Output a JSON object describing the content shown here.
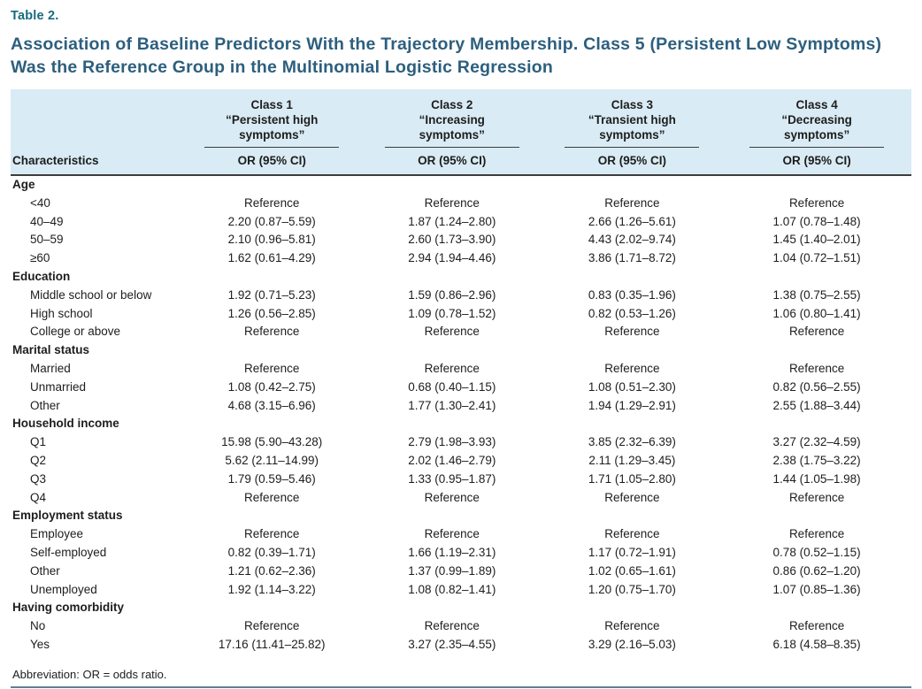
{
  "colors": {
    "accent_teal": "#176a80",
    "heading_blue": "#2d5f7e",
    "header_bg": "#d9ebf4",
    "header_rule": "#3d3d3d",
    "footer_rule": "#607f92"
  },
  "header": {
    "table_label": "Table 2.",
    "title": "Association of Baseline Predictors With the Trajectory Membership. Class 5 (Persistent Low Symptoms) Was the Reference Group in the Multinomial Logistic Regression"
  },
  "table": {
    "row_header": "Characteristics",
    "columns": [
      {
        "class_label": "Class 1",
        "class_name": "“Persistent high symptoms”",
        "measure": "OR (95% CI)"
      },
      {
        "class_label": "Class 2",
        "class_name": "“Increasing symptoms”",
        "measure": "OR (95% CI)"
      },
      {
        "class_label": "Class 3",
        "class_name": "“Transient high symptoms”",
        "measure": "OR (95% CI)"
      },
      {
        "class_label": "Class 4",
        "class_name": "“Decreasing symptoms”",
        "measure": "OR (95% CI)"
      }
    ],
    "sections": [
      {
        "label": "Age",
        "rows": [
          {
            "label": "<40",
            "values": [
              "Reference",
              "Reference",
              "Reference",
              "Reference"
            ]
          },
          {
            "label": "40–49",
            "values": [
              "2.20 (0.87–5.59)",
              "1.87 (1.24–2.80)",
              "2.66 (1.26–5.61)",
              "1.07 (0.78–1.48)"
            ]
          },
          {
            "label": "50–59",
            "values": [
              "2.10 (0.96–5.81)",
              "2.60 (1.73–3.90)",
              "4.43 (2.02–9.74)",
              "1.45 (1.40–2.01)"
            ]
          },
          {
            "label": "≥60",
            "values": [
              "1.62 (0.61–4.29)",
              "2.94 (1.94–4.46)",
              "3.86 (1.71–8.72)",
              "1.04 (0.72–1.51)"
            ]
          }
        ]
      },
      {
        "label": "Education",
        "rows": [
          {
            "label": "Middle school or below",
            "values": [
              "1.92 (0.71–5.23)",
              "1.59 (0.86–2.96)",
              "0.83 (0.35–1.96)",
              "1.38 (0.75–2.55)"
            ]
          },
          {
            "label": "High school",
            "values": [
              "1.26 (0.56–2.85)",
              "1.09 (0.78–1.52)",
              "0.82 (0.53–1.26)",
              "1.06 (0.80–1.41)"
            ]
          },
          {
            "label": "College or above",
            "values": [
              "Reference",
              "Reference",
              "Reference",
              "Reference"
            ]
          }
        ]
      },
      {
        "label": "Marital status",
        "rows": [
          {
            "label": "Married",
            "values": [
              "Reference",
              "Reference",
              "Reference",
              "Reference"
            ]
          },
          {
            "label": "Unmarried",
            "values": [
              "1.08 (0.42–2.75)",
              "0.68 (0.40–1.15)",
              "1.08 (0.51–2.30)",
              "0.82 (0.56–2.55)"
            ]
          },
          {
            "label": "Other",
            "values": [
              "4.68 (3.15–6.96)",
              "1.77 (1.30–2.41)",
              "1.94 (1.29–2.91)",
              "2.55 (1.88–3.44)"
            ]
          }
        ]
      },
      {
        "label": "Household income",
        "rows": [
          {
            "label": "Q1",
            "values": [
              "15.98 (5.90–43.28)",
              "2.79 (1.98–3.93)",
              "3.85 (2.32–6.39)",
              "3.27 (2.32–4.59)"
            ]
          },
          {
            "label": "Q2",
            "values": [
              "5.62 (2.11–14.99)",
              "2.02 (1.46–2.79)",
              "2.11 (1.29–3.45)",
              "2.38 (1.75–3.22)"
            ]
          },
          {
            "label": "Q3",
            "values": [
              "1.79 (0.59–5.46)",
              "1.33 (0.95–1.87)",
              "1.71 (1.05–2.80)",
              "1.44 (1.05–1.98)"
            ]
          },
          {
            "label": "Q4",
            "values": [
              "Reference",
              "Reference",
              "Reference",
              "Reference"
            ]
          }
        ]
      },
      {
        "label": "Employment status",
        "rows": [
          {
            "label": "Employee",
            "values": [
              "Reference",
              "Reference",
              "Reference",
              "Reference"
            ]
          },
          {
            "label": "Self-employed",
            "values": [
              "0.82 (0.39–1.71)",
              "1.66 (1.19–2.31)",
              "1.17 (0.72–1.91)",
              "0.78 (0.52–1.15)"
            ]
          },
          {
            "label": "Other",
            "values": [
              "1.21 (0.62–2.36)",
              "1.37 (0.99–1.89)",
              "1.02 (0.65–1.61)",
              "0.86 (0.62–1.20)"
            ]
          },
          {
            "label": "Unemployed",
            "values": [
              "1.92 (1.14–3.22)",
              "1.08 (0.82–1.41)",
              "1.20 (0.75–1.70)",
              "1.07 (0.85–1.36)"
            ]
          }
        ]
      },
      {
        "label": "Having comorbidity",
        "rows": [
          {
            "label": "No",
            "values": [
              "Reference",
              "Reference",
              "Reference",
              "Reference"
            ]
          },
          {
            "label": "Yes",
            "values": [
              "17.16 (11.41–25.82)",
              "3.27 (2.35–4.55)",
              "3.29 (2.16–5.03)",
              "6.18 (4.58–8.35)"
            ]
          }
        ]
      }
    ],
    "footnote": "Abbreviation: OR = odds ratio."
  }
}
